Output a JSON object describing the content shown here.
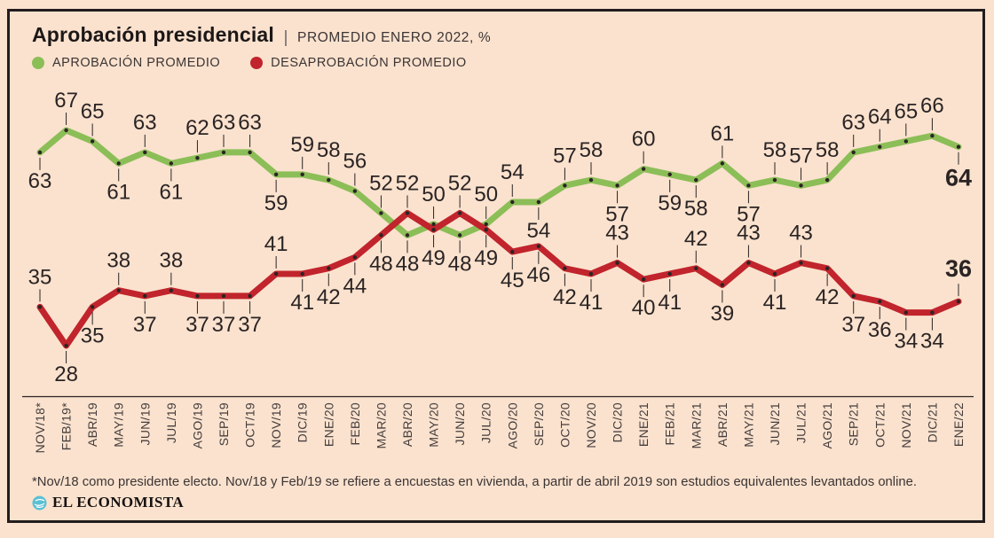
{
  "header": {
    "title": "Aprobación presidencial",
    "subtitle": "PROMEDIO ENERO 2022, %"
  },
  "legend": {
    "items": [
      {
        "label": "APROBACIÓN PROMEDIO",
        "color": "#8cbe57"
      },
      {
        "label": "DESAPROBACIÓN PROMEDIO",
        "color": "#c1242c"
      }
    ]
  },
  "footer": {
    "footnote": "*Nov/18 como presidente electo. Nov/18 y Feb/19 se refiere a encuestas en vivienda, a partir de abril 2019 son estudios equivalentes levantados online.",
    "brand": "EL ECONOMISTA"
  },
  "colors": {
    "background": "#fae2ce",
    "frame": "#221c1d",
    "text": "#2b2424",
    "axis_label": "#453d3d",
    "approval_green": "#8cbe57",
    "disapproval_red": "#c1242c",
    "brand_icon": "#5bc0d4"
  },
  "chart_data": {
    "type": "line",
    "title": "Aprobación presidencial | PROMEDIO ENERO 2022, %",
    "categories": [
      "NOV/18*",
      "FEB/19*",
      "ABR/19",
      "MAY/19",
      "JUN/19",
      "JUL/19",
      "AGO/19",
      "SEP/19",
      "OCT/19",
      "NOV/19",
      "DIC/19",
      "ENE/20",
      "FEB/20",
      "MAR/20",
      "ABR/20",
      "MAY/20",
      "JUN/20",
      "JUL/20",
      "AGO/20",
      "SEP/20",
      "OCT/20",
      "NOV/20",
      "DIC/20",
      "ENE/21",
      "FEB/21",
      "MAR/21",
      "ABR/21",
      "MAY/21",
      "JUN/21",
      "JUL/21",
      "AGO/21",
      "SEP/21",
      "OCT/21",
      "NOV/21",
      "DIC/21",
      "ENE/22"
    ],
    "series": [
      {
        "name": "APROBACIÓN PROMEDIO",
        "color": "#8cbe57",
        "values": [
          63,
          67,
          65,
          61,
          63,
          61,
          62,
          63,
          63,
          59,
          59,
          58,
          56,
          52,
          48,
          50,
          48,
          50,
          54,
          54,
          57,
          58,
          57,
          60,
          59,
          58,
          61,
          57,
          58,
          57,
          58,
          63,
          64,
          65,
          66,
          64
        ],
        "label_side": [
          "below",
          "above",
          "above",
          "below",
          "above",
          "below",
          "above",
          "above",
          "above",
          "below",
          "above",
          "above",
          "above",
          "above",
          "below",
          "above",
          "below",
          "above",
          "above",
          "below",
          "above",
          "above",
          "below",
          "above",
          "below",
          "below",
          "above",
          "below",
          "above",
          "above",
          "above",
          "above",
          "above",
          "above",
          "above",
          "below"
        ]
      },
      {
        "name": "DESAPROBACIÓN PROMEDIO",
        "color": "#c1242c",
        "values": [
          35,
          28,
          35,
          38,
          37,
          38,
          37,
          37,
          37,
          41,
          41,
          42,
          44,
          48,
          52,
          49,
          52,
          49,
          45,
          46,
          42,
          41,
          43,
          40,
          41,
          42,
          39,
          43,
          41,
          43,
          42,
          37,
          36,
          34,
          34,
          36
        ],
        "label_side": [
          "above",
          "below",
          "below",
          "above",
          "below",
          "above",
          "below",
          "below",
          "below",
          "above",
          "below",
          "below",
          "below",
          "below",
          "above",
          "below",
          "above",
          "below",
          "below",
          "below",
          "below",
          "below",
          "above",
          "below",
          "below",
          "above",
          "below",
          "above",
          "below",
          "above",
          "below",
          "below",
          "below",
          "below",
          "below",
          "above"
        ]
      }
    ],
    "ylim": [
      24,
      70
    ],
    "grid": false,
    "legend_position": "top-left",
    "value_labels": true,
    "last_value_bold": true
  }
}
